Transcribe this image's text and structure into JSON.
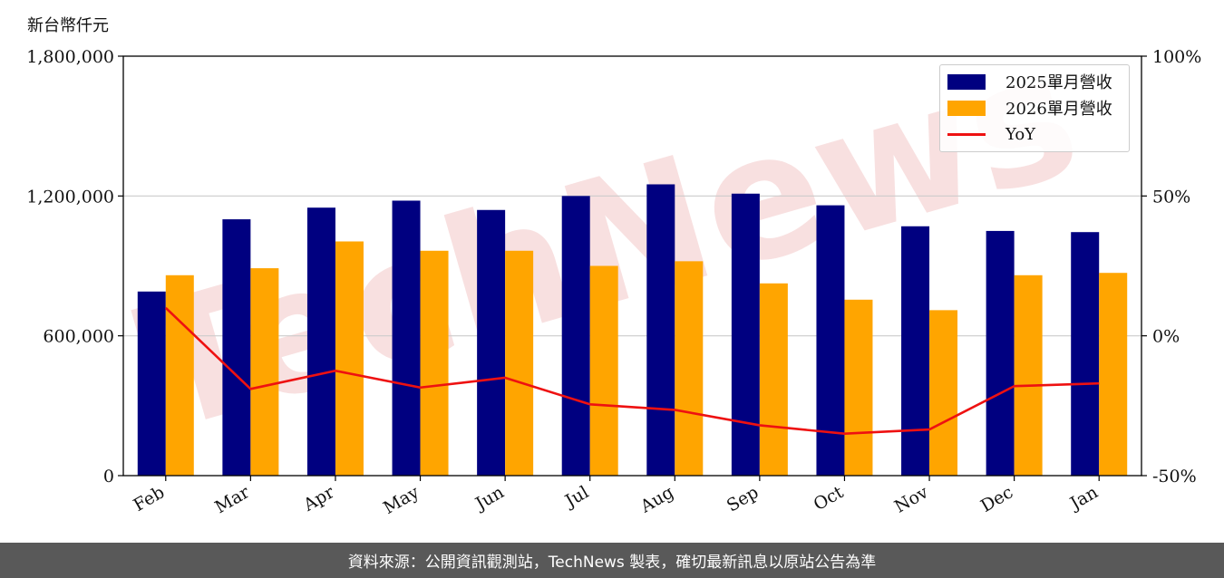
{
  "unit_label": "新台幣仟元",
  "footer_text": "資料來源：公開資訊觀測站，TechNews 製表，確切最新訊息以原站公告為準",
  "watermark_text": "TechNews",
  "colors": {
    "series_2025": "#000080",
    "series_2026": "#ffa500",
    "yoy": "#ee1111",
    "watermark": "#f3c8c8"
  },
  "chart_data": {
    "type": "bar",
    "categories": [
      "Feb",
      "Mar",
      "Apr",
      "May",
      "Jun",
      "Jul",
      "Aug",
      "Sep",
      "Oct",
      "Nov",
      "Dec",
      "Jan"
    ],
    "series": [
      {
        "name": "2025單月營收",
        "values": [
          790000,
          1100000,
          1150000,
          1180000,
          1140000,
          1200000,
          1250000,
          1210000,
          1160000,
          1070000,
          1050000,
          1045000
        ]
      },
      {
        "name": "2026單月營收",
        "values": [
          860000,
          890000,
          1005000,
          965000,
          965000,
          900000,
          920000,
          825000,
          755000,
          710000,
          860000,
          870000
        ]
      }
    ],
    "line_series": {
      "name": "YoY",
      "axis": "right",
      "values": [
        10,
        -19,
        -12.5,
        -18.5,
        -15,
        -24.5,
        -26.5,
        -32,
        -35,
        -33.5,
        -18,
        -17
      ]
    },
    "y_left": {
      "ylim": [
        0,
        1800000
      ],
      "ticks": [
        "0",
        "600,000",
        "1,200,000",
        "1,800,000"
      ],
      "tick_values": [
        0,
        600000,
        1200000,
        1800000
      ]
    },
    "y_right": {
      "ylim": [
        -50,
        100
      ],
      "ticks": [
        "-50%",
        "0%",
        "50%",
        "100%"
      ],
      "tick_values": [
        -50,
        0,
        50,
        100
      ]
    },
    "grid": "horizontal",
    "legend_position": "top-right"
  }
}
